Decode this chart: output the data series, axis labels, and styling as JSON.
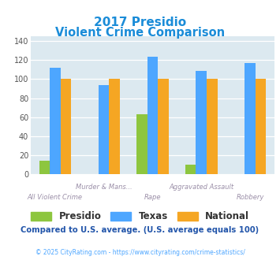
{
  "title_line1": "2017 Presidio",
  "title_line2": "Violent Crime Comparison",
  "categories": [
    "All Violent Crime",
    "Murder & Mans...",
    "Rape",
    "Aggravated Assault",
    "Robbery"
  ],
  "presidio": [
    14,
    0,
    63,
    10,
    0
  ],
  "texas": [
    112,
    94,
    124,
    109,
    117
  ],
  "national": [
    100,
    100,
    100,
    100,
    100
  ],
  "presidio_color": "#8dc63f",
  "texas_color": "#4da6ff",
  "national_color": "#f5a623",
  "ylim": [
    0,
    145
  ],
  "yticks": [
    0,
    20,
    40,
    60,
    80,
    100,
    120,
    140
  ],
  "plot_bg": "#dce9f0",
  "title_color": "#1a8cd8",
  "note_text": "Compared to U.S. average. (U.S. average equals 100)",
  "note_color": "#2255aa",
  "footer_text": "© 2025 CityRating.com - https://www.cityrating.com/crime-statistics/",
  "footer_color": "#4da6ff",
  "bar_width": 0.22,
  "group_positions": [
    0,
    1,
    2,
    3,
    4
  ]
}
